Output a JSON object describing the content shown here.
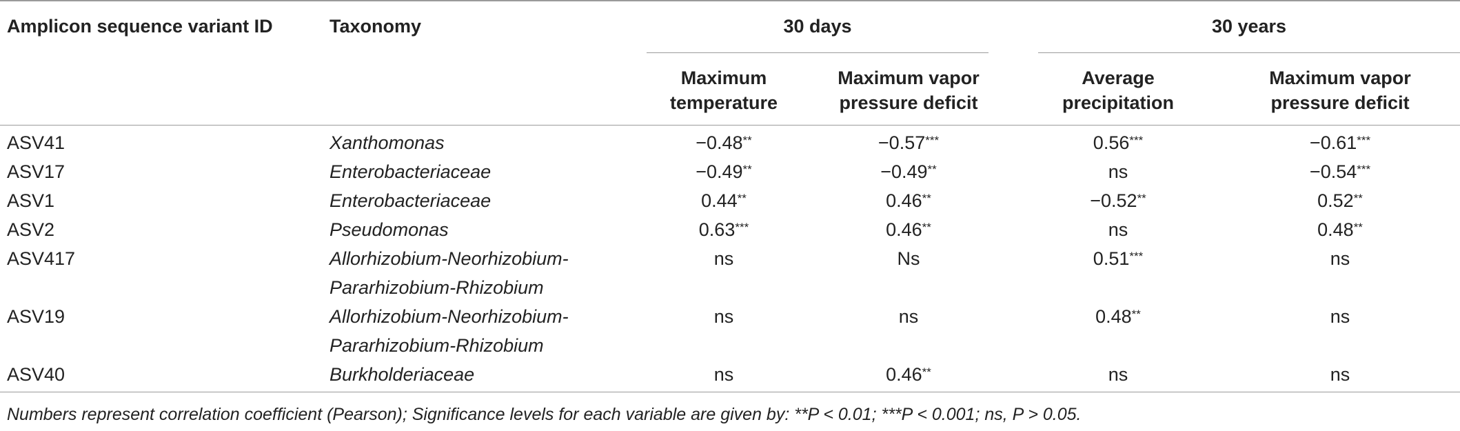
{
  "table": {
    "headers": {
      "id": "Amplicon sequence variant ID",
      "taxonomy": "Taxonomy",
      "group_30_days": "30 days",
      "group_30_years": "30 years",
      "sub_max_temp_l1": "Maximum",
      "sub_max_temp_l2": "temperature",
      "sub_vpd_days_l1": "Maximum vapor",
      "sub_vpd_days_l2": "pressure deficit",
      "sub_avg_precip_l1": "Average",
      "sub_avg_precip_l2": "precipitation",
      "sub_vpd_years_l1": "Maximum vapor",
      "sub_vpd_years_l2": "pressure deficit"
    },
    "rows": [
      {
        "id": "ASV41",
        "tax1": "Xanthomonas",
        "tax2": "",
        "d1": "−0.48",
        "d1s": "**",
        "d2": "−0.57",
        "d2s": "***",
        "y1": "0.56",
        "y1s": "***",
        "y2": "−0.61",
        "y2s": "***"
      },
      {
        "id": "ASV17",
        "tax1": "Enterobacteriaceae",
        "tax2": "",
        "d1": "−0.49",
        "d1s": "**",
        "d2": "−0.49",
        "d2s": "**",
        "y1": "ns",
        "y1s": "",
        "y2": "−0.54",
        "y2s": "***"
      },
      {
        "id": "ASV1",
        "tax1": "Enterobacteriaceae",
        "tax2": "",
        "d1": "0.44",
        "d1s": "**",
        "d2": "0.46",
        "d2s": "**",
        "y1": "−0.52",
        "y1s": "**",
        "y2": "0.52",
        "y2s": "**"
      },
      {
        "id": "ASV2",
        "tax1": "Pseudomonas",
        "tax2": "",
        "d1": "0.63",
        "d1s": "***",
        "d2": "0.46",
        "d2s": "**",
        "y1": "ns",
        "y1s": "",
        "y2": "0.48",
        "y2s": "**"
      },
      {
        "id": "ASV417",
        "tax1": "Allorhizobium-Neorhizobium-",
        "tax2": "Pararhizobium-Rhizobium",
        "d1": "ns",
        "d1s": "",
        "d2": "Ns",
        "d2s": "",
        "y1": "0.51",
        "y1s": "***",
        "y2": "ns",
        "y2s": ""
      },
      {
        "id": "ASV19",
        "tax1": "Allorhizobium-Neorhizobium-",
        "tax2": "Pararhizobium-Rhizobium",
        "d1": "ns",
        "d1s": "",
        "d2": "ns",
        "d2s": "",
        "y1": "0.48",
        "y1s": "**",
        "y2": "ns",
        "y2s": ""
      },
      {
        "id": "ASV40",
        "tax1": "Burkholderiaceae",
        "tax2": "",
        "d1": "ns",
        "d1s": "",
        "d2": "0.46",
        "d2s": "**",
        "y1": "ns",
        "y1s": "",
        "y2": "ns",
        "y2s": ""
      }
    ]
  },
  "footnote": "Numbers represent correlation coefficient (Pearson); Significance levels for each variable are given by: **P < 0.01; ***P < 0.001; ns, P > 0.05."
}
